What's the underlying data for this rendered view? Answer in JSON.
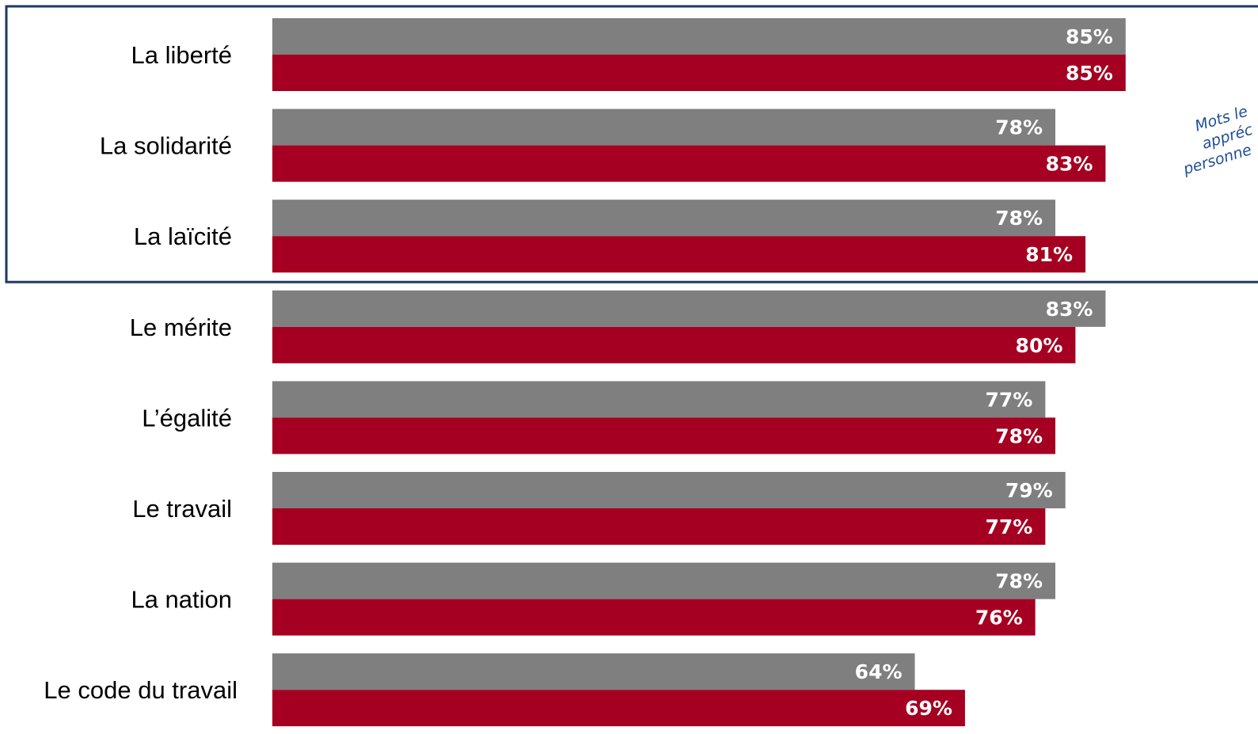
{
  "chart_data": {
    "type": "bar",
    "orientation": "horizontal",
    "categories": [
      "La liberté",
      "La solidarité",
      "La laïcité",
      "Le mérite",
      "L’égalité",
      "Le travail",
      "La nation",
      "Le code du travail"
    ],
    "series": [
      {
        "color": "#7f7f7f",
        "values": [
          85,
          78,
          78,
          83,
          77,
          79,
          78,
          64
        ],
        "labels": [
          "85%",
          "78%",
          "78%",
          "83%",
          "77%",
          "79%",
          "78%",
          "64%"
        ]
      },
      {
        "color": "#a50021",
        "values": [
          85,
          83,
          81,
          80,
          78,
          77,
          76,
          69
        ],
        "labels": [
          "85%",
          "83%",
          "81%",
          "80%",
          "78%",
          "77%",
          "76%",
          "69%"
        ]
      }
    ],
    "xlim": [
      0,
      100
    ],
    "grid": false,
    "legend": "none",
    "highlight_box": {
      "categories": [
        "La liberté",
        "La solidarité",
        "La laïcité"
      ],
      "border_color": "#1f3864"
    },
    "annotation": {
      "lines": [
        "Mots le",
        "appréc",
        "personne"
      ],
      "color": "#1f4e99"
    }
  }
}
